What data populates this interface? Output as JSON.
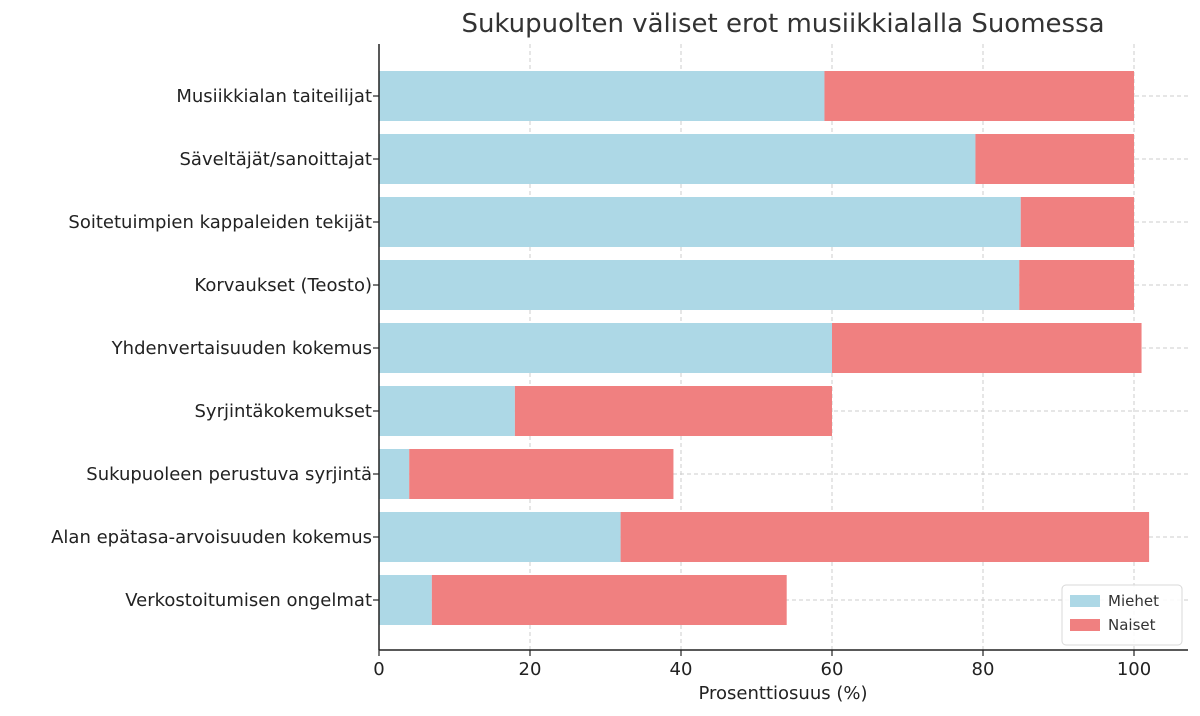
{
  "chart_data": {
    "type": "bar",
    "orientation": "horizontal",
    "stacked": true,
    "title": "Sukupuolten väliset erot musiikkialalla Suomessa",
    "xlabel": "Prosenttiosuus (%)",
    "ylabel": "",
    "xlim": [
      0,
      107
    ],
    "xticks": [
      0,
      20,
      40,
      60,
      80,
      100
    ],
    "grid": true,
    "legend_position": "bottom-right",
    "categories": [
      "Musiikkialan taiteilijat",
      "Säveltäjät/sanoittajat",
      "Soitetuimpien kappaleiden tekijät",
      "Korvaukset (Teosto)",
      "Yhdenvertaisuuden kokemus",
      "Syrjintäkokemukset",
      "Sukupuoleen perustuva syrjintä",
      "Alan epätasa-arvoisuuden kokemus",
      "Verkostoitumisen ongelmat"
    ],
    "series": [
      {
        "name": "Miehet",
        "color": "#add8e6",
        "values": [
          59,
          79,
          85,
          84.8,
          60,
          18,
          4,
          32,
          7
        ]
      },
      {
        "name": "Naiset",
        "color": "#f08080",
        "values": [
          41,
          21,
          15,
          15.2,
          41,
          42,
          35,
          70,
          47
        ]
      }
    ]
  }
}
